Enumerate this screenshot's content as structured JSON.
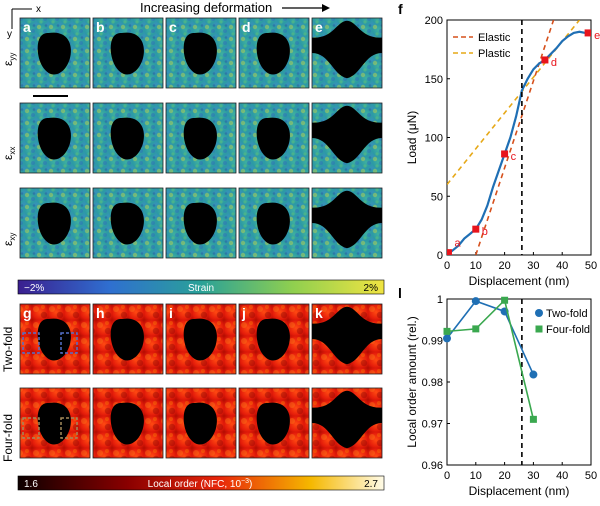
{
  "figure": {
    "header": "Increasing deformation",
    "axis_x": "x",
    "axis_y": "y",
    "panel_letters": [
      "a",
      "b",
      "c",
      "d",
      "e"
    ],
    "row_labels_strain": [
      "ε",
      "ε",
      "ε"
    ],
    "row_label_subscripts": [
      "yy",
      "xx",
      "xy"
    ],
    "strain_colorbar": {
      "min_label": "−2%",
      "center_label": "Strain",
      "max_label": "2%"
    },
    "order_panel_letters": [
      "g",
      "h",
      "i",
      "j",
      "k"
    ],
    "order_row_labels": [
      "Two-fold",
      "Four-fold"
    ],
    "order_colorbar": {
      "min_label": "1.6",
      "center_label": "Local order (NFC, 10",
      "center_exp": "−3",
      "center_tail": ")",
      "max_label": "2.7"
    },
    "colors": {
      "strain_low": "#3b1f8f",
      "strain_mid": "#2aa198",
      "strain_high": "#f0e442",
      "order_low": "#1a0000",
      "order_high": "#ffffff"
    }
  },
  "chart_data": [
    {
      "id": "f",
      "label": "f",
      "type": "line",
      "xlabel": "Displacement (nm)",
      "ylabel": "Load (μN)",
      "xlim": [
        0,
        50
      ],
      "ylim": [
        0,
        200
      ],
      "xticks": [
        0,
        10,
        20,
        30,
        40,
        50
      ],
      "yticks": [
        0,
        50,
        100,
        150,
        200
      ],
      "vline_x": 26,
      "legend": [
        "Elastic",
        "Plastic"
      ],
      "legend_position": "top-left",
      "curve": {
        "x": [
          0,
          2,
          4,
          6,
          8,
          10,
          12,
          14,
          16,
          18,
          20,
          22,
          24,
          26,
          28,
          30,
          32,
          34,
          36,
          38,
          40,
          42,
          44,
          46,
          48,
          50
        ],
        "y": [
          0,
          4,
          8,
          14,
          18,
          22,
          30,
          42,
          58,
          72,
          86,
          100,
          118,
          140,
          150,
          158,
          163,
          166,
          171,
          176,
          182,
          186,
          189,
          190,
          189,
          188
        ]
      },
      "markers": [
        {
          "x": 0.5,
          "y": 2,
          "label": "a"
        },
        {
          "x": 10,
          "y": 22,
          "label": "b"
        },
        {
          "x": 20,
          "y": 86,
          "label": "c"
        },
        {
          "x": 34,
          "y": 166,
          "label": "d"
        },
        {
          "x": 49,
          "y": 189,
          "label": "e"
        }
      ],
      "elastic_fit": {
        "x": [
          10,
          37
        ],
        "y": [
          0,
          200
        ]
      },
      "plastic_fit": {
        "x": [
          0,
          46
        ],
        "y": [
          60,
          200
        ]
      }
    },
    {
      "id": "l",
      "label": "l",
      "type": "line",
      "xlabel": "Displacement (nm)",
      "ylabel": "Local order amount (rel.)",
      "xlim": [
        0,
        50
      ],
      "ylim": [
        0.96,
        1.0
      ],
      "xticks": [
        0,
        10,
        20,
        30,
        40,
        50
      ],
      "yticks": [
        0.96,
        0.97,
        0.98,
        0.99,
        1
      ],
      "ytick_labels": [
        "0.96",
        "0.97",
        "0.98",
        "0.99",
        "1"
      ],
      "vline_x": 26,
      "legend_position": "top-right",
      "series": [
        {
          "name": "Two-fold",
          "x": [
            0,
            10,
            20,
            30
          ],
          "y": [
            0.9905,
            0.9995,
            0.997,
            0.9818
          ],
          "color": "#1f6fb4"
        },
        {
          "name": "Four-fold",
          "x": [
            0,
            10,
            20,
            30
          ],
          "y": [
            0.9922,
            0.9928,
            0.9997,
            0.971
          ],
          "color": "#3aa84f"
        }
      ]
    }
  ]
}
